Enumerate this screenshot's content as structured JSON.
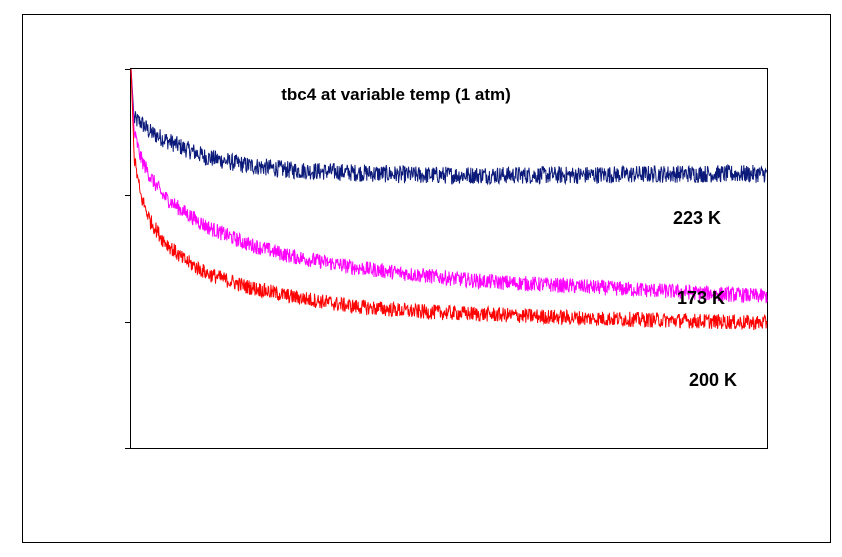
{
  "chart_data": {
    "type": "line",
    "title": "tbc4 at variable temp (1 atm)",
    "xlabel": "",
    "ylabel": "",
    "xlim": [
      0,
      1
    ],
    "ylim": [
      0,
      3
    ],
    "y_ticks": [
      0,
      1,
      2,
      3
    ],
    "grid": false,
    "legend": "none",
    "series": [
      {
        "name": "223 K",
        "color": "#0b1a7a",
        "noise": 0.07,
        "x": [
          0,
          0.005,
          0.015,
          0.03,
          0.05,
          0.08,
          0.12,
          0.18,
          0.25,
          0.35,
          0.45,
          0.55,
          0.7,
          0.85,
          1.0
        ],
        "y": [
          3.0,
          2.6,
          2.58,
          2.5,
          2.45,
          2.38,
          2.3,
          2.24,
          2.2,
          2.18,
          2.16,
          2.16,
          2.16,
          2.17,
          2.17
        ]
      },
      {
        "name": "173 K",
        "color": "#ff00ff",
        "noise": 0.06,
        "x": [
          0,
          0.005,
          0.015,
          0.03,
          0.05,
          0.08,
          0.12,
          0.18,
          0.25,
          0.35,
          0.45,
          0.55,
          0.7,
          0.85,
          1.0
        ],
        "y": [
          3.0,
          2.5,
          2.3,
          2.15,
          2.0,
          1.88,
          1.75,
          1.62,
          1.52,
          1.43,
          1.37,
          1.32,
          1.28,
          1.24,
          1.2
        ]
      },
      {
        "name": "200 K",
        "color": "#ff0000",
        "noise": 0.06,
        "x": [
          0,
          0.005,
          0.015,
          0.03,
          0.05,
          0.08,
          0.12,
          0.18,
          0.25,
          0.35,
          0.45,
          0.55,
          0.7,
          0.85,
          1.0
        ],
        "y": [
          3.0,
          2.3,
          2.0,
          1.8,
          1.65,
          1.5,
          1.38,
          1.28,
          1.2,
          1.12,
          1.08,
          1.06,
          1.03,
          1.01,
          0.99
        ]
      }
    ],
    "labels": [
      {
        "text": "223 K",
        "series": 0
      },
      {
        "text": "173 K",
        "series": 1
      },
      {
        "text": "200 K",
        "series": 2
      }
    ]
  }
}
